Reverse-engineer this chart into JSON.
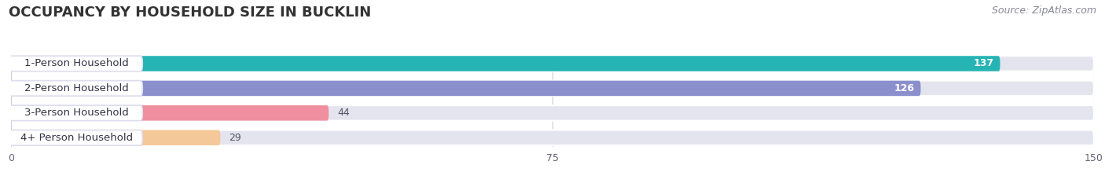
{
  "title": "OCCUPANCY BY HOUSEHOLD SIZE IN BUCKLIN",
  "source": "Source: ZipAtlas.com",
  "categories": [
    "1-Person Household",
    "2-Person Household",
    "3-Person Household",
    "4+ Person Household"
  ],
  "values": [
    137,
    126,
    44,
    29
  ],
  "bar_colors": [
    "#26b3b3",
    "#8b8fcc",
    "#f08fa0",
    "#f5c89a"
  ],
  "xlim_min": 0,
  "xlim_max": 150,
  "xticks": [
    0,
    75,
    150
  ],
  "bg_color": "#ffffff",
  "bar_bg_color": "#e4e4ee",
  "separator_color": "#f8f8f8",
  "title_fontsize": 13,
  "source_fontsize": 9,
  "label_fontsize": 9.5,
  "value_fontsize": 9
}
